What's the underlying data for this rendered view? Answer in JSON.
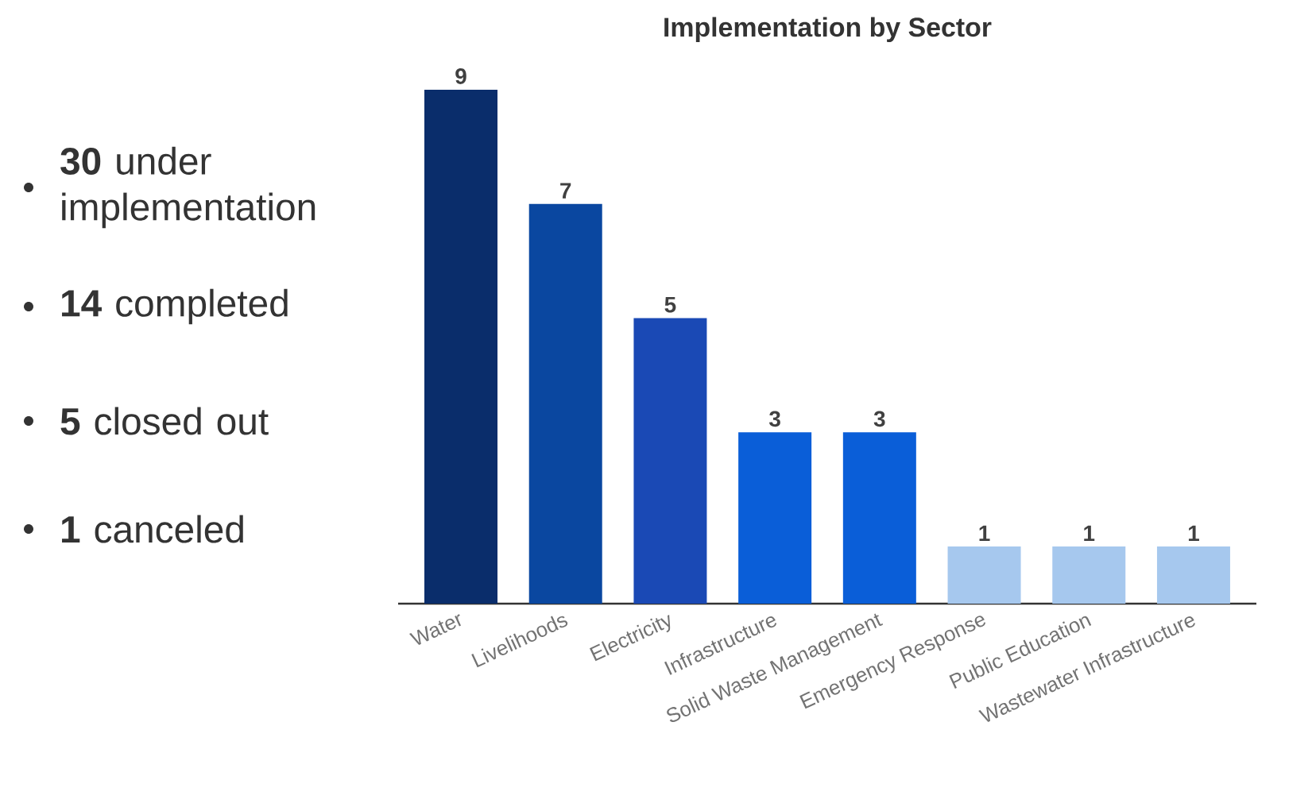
{
  "chart_data": [
    {
      "type": "other",
      "annotations": [
        "**30** under implementation",
        "**14** completed",
        "**5** closed out",
        "**1** canceled"
      ]
    },
    {
      "type": "bar",
      "title": "Implementation by Sector",
      "categories": [
        "Water",
        "Livelihoods",
        "Electricity",
        "Infrastructure",
        "Solid Waste Management",
        "Emergency Response",
        "Public Education",
        "Wastewater Infrastructure"
      ],
      "values": [
        9,
        7,
        5,
        3,
        3,
        1,
        1,
        1
      ],
      "colors": [
        "#0a2d6b",
        "#0a47a0",
        "#1a49b5",
        "#0a5ed8",
        "#0a5ed8",
        "#a6c8ee",
        "#a6c8ee",
        "#a6c8ee"
      ],
      "data_labels": true
    }
  ]
}
